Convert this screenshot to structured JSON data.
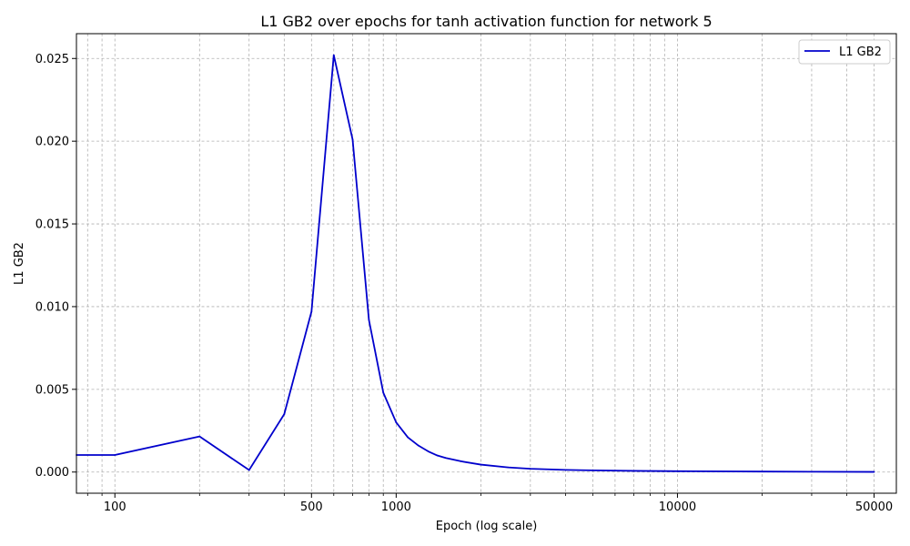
{
  "chart_data": {
    "type": "line",
    "title": "L1 GB2 over epochs for tanh activation function for network 5",
    "xlabel": "Epoch (log scale)",
    "ylabel": "L1 GB2",
    "xscale": "log",
    "xlim": [
      73,
      60000
    ],
    "ylim": [
      -0.00128,
      0.0265
    ],
    "x_ticks": [
      100,
      500,
      1000,
      10000,
      50000
    ],
    "x_tick_labels": [
      "100",
      "500",
      "1000",
      "10000",
      "50000"
    ],
    "y_ticks": [
      0.0,
      0.005,
      0.01,
      0.015,
      0.02,
      0.025
    ],
    "y_tick_labels": [
      "0.000",
      "0.005",
      "0.010",
      "0.015",
      "0.020",
      "0.025"
    ],
    "grid": true,
    "legend_position": "top-right",
    "series": [
      {
        "name": "L1 GB2",
        "color": "#0000cc",
        "x": [
          73,
          100,
          200,
          300,
          400,
          500,
          600,
          700,
          800,
          900,
          1000,
          1100,
          1200,
          1300,
          1400,
          1500,
          1700,
          2000,
          2500,
          3000,
          4000,
          5000,
          7000,
          10000,
          20000,
          30000,
          50000
        ],
        "y": [
          0.00103,
          0.00103,
          0.00215,
          0.00012,
          0.0035,
          0.0097,
          0.0252,
          0.0201,
          0.0092,
          0.0048,
          0.003,
          0.0021,
          0.0016,
          0.00125,
          0.001,
          0.00085,
          0.00065,
          0.00045,
          0.00028,
          0.0002,
          0.00013,
          0.0001,
          7e-05,
          5e-05,
          3e-05,
          2e-05,
          1e-05
        ]
      }
    ]
  }
}
